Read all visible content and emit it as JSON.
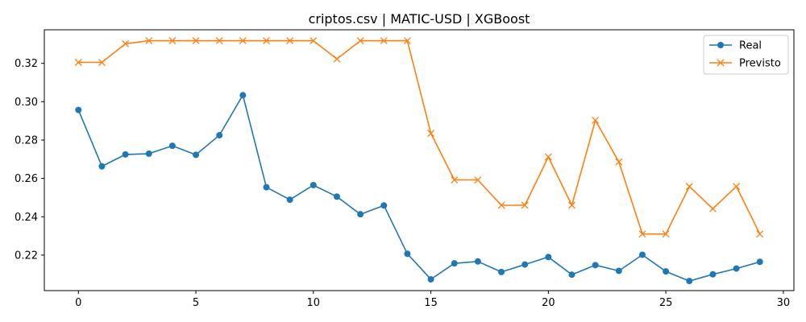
{
  "chart_data": {
    "type": "line",
    "title": "criptos.csv | MATIC-USD | XGBoost",
    "xlabel": "",
    "ylabel": "",
    "xlim": [
      -1.45,
      30.45
    ],
    "ylim": [
      0.2015,
      0.3375
    ],
    "xticks": [
      0,
      5,
      10,
      15,
      20,
      25,
      30
    ],
    "xtick_labels": [
      "0",
      "5",
      "10",
      "15",
      "20",
      "25",
      "30"
    ],
    "yticks": [
      0.22,
      0.24,
      0.26,
      0.28,
      0.3,
      0.32
    ],
    "ytick_labels": [
      "0.22",
      "0.24",
      "0.26",
      "0.28",
      "0.30",
      "0.32"
    ],
    "grid": false,
    "legend_position": "top-right",
    "x": [
      0,
      1,
      2,
      3,
      4,
      5,
      6,
      7,
      8,
      9,
      10,
      11,
      12,
      13,
      14,
      15,
      16,
      17,
      18,
      19,
      20,
      21,
      22,
      23,
      24,
      25,
      26,
      27,
      28,
      29
    ],
    "series": [
      {
        "name": "Real",
        "color": "#1f77b4",
        "marker": "circle",
        "values": [
          0.2957,
          0.2663,
          0.2725,
          0.2729,
          0.277,
          0.2723,
          0.2825,
          0.3034,
          0.2554,
          0.2489,
          0.2565,
          0.2505,
          0.2413,
          0.2459,
          0.2207,
          0.2074,
          0.2157,
          0.2167,
          0.2112,
          0.2151,
          0.219,
          0.2098,
          0.2148,
          0.2118,
          0.2202,
          0.2115,
          0.2065,
          0.21,
          0.213,
          0.2165
        ]
      },
      {
        "name": "Previsto",
        "color": "#ff7f0e",
        "marker": "x",
        "values": [
          0.3205,
          0.3205,
          0.3302,
          0.3318,
          0.3318,
          0.3318,
          0.3318,
          0.3318,
          0.3318,
          0.3318,
          0.3318,
          0.3223,
          0.3318,
          0.3318,
          0.3318,
          0.2835,
          0.2592,
          0.2592,
          0.246,
          0.246,
          0.2712,
          0.246,
          0.2903,
          0.2686,
          0.231,
          0.231,
          0.2558,
          0.2442,
          0.2558,
          0.231
        ]
      }
    ]
  }
}
